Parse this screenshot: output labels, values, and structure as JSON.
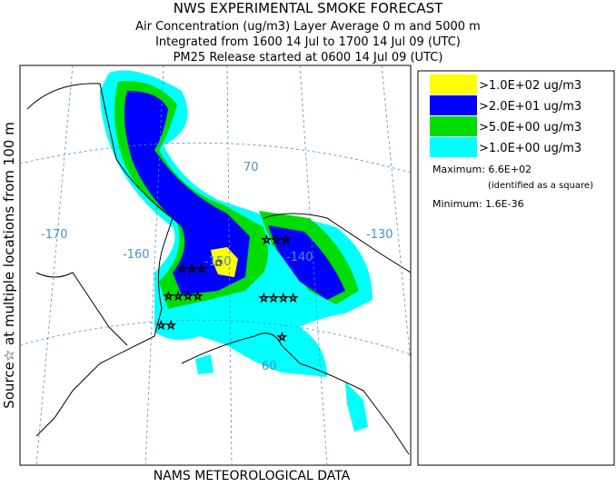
{
  "header": {
    "title": "NWS EXPERIMENTAL SMOKE FORECAST",
    "lines": [
      "Air Concentration (ug/m3) Layer Average    0 m and  5000 m",
      "Integrated from 1600 14 Jul to 1700 14 Jul 09 (UTC)",
      "PM25 Release started at 0600 14 Jul 09 (UTC)"
    ]
  },
  "side_label": "Source☆ at multiple locations    from   100 m",
  "map": {
    "grid_labels": [
      "-170",
      "-160",
      "-150",
      "-140",
      "-130",
      "70",
      "60"
    ]
  },
  "legend": {
    "entries": [
      {
        "label": ">1.0E+02 ug/m3",
        "color": "#ffff00"
      },
      {
        "label": ">2.0E+01 ug/m3",
        "color": "#0000ff"
      },
      {
        "label": ">5.0E+00 ug/m3",
        "color": "#00dd00"
      },
      {
        "label": ">1.0E+00 ug/m3",
        "color": "#00ffff"
      }
    ],
    "maximum": "Maximum: 6.6E+02",
    "maximum_note": "(identified as a square)",
    "minimum": "Minimum: 1.6E-36"
  },
  "footer": "NAMS METEOROLOGICAL DATA"
}
